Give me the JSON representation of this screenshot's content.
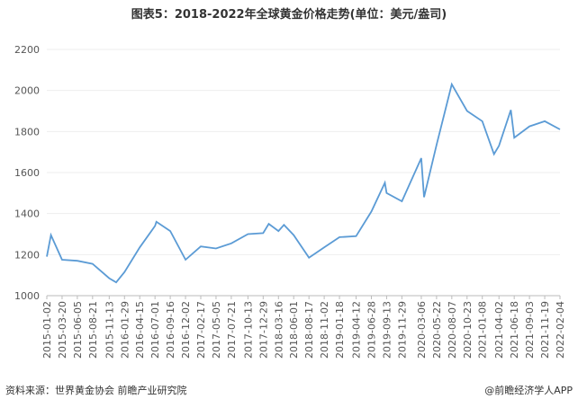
{
  "chart_data": {
    "type": "line",
    "title": "图表5：2018-2022年全球黄金价格走势(单位：美元/盎司)",
    "source": "资料来源：世界黄金协会 前瞻产业研究院",
    "credit": "@前瞻经济学人APP",
    "x": [
      "2015-01-02",
      "2015-01-23",
      "2015-03-20",
      "2015-06-05",
      "2015-08-21",
      "2015-11-13",
      "2015-12-18",
      "2016-01-29",
      "2016-04-15",
      "2016-07-01",
      "2016-07-08",
      "2016-09-16",
      "2016-12-02",
      "2017-02-17",
      "2017-05-05",
      "2017-07-21",
      "2017-10-13",
      "2017-12-29",
      "2018-01-26",
      "2018-03-16",
      "2018-04-13",
      "2018-06-01",
      "2018-08-17",
      "2018-11-02",
      "2019-01-18",
      "2019-04-12",
      "2019-06-28",
      "2019-09-04",
      "2019-09-13",
      "2019-11-29",
      "2020-03-06",
      "2020-03-20",
      "2020-05-22",
      "2020-08-07",
      "2020-10-23",
      "2021-01-08",
      "2021-03-08",
      "2021-04-02",
      "2021-06-01",
      "2021-06-18",
      "2021-09-03",
      "2021-11-19",
      "2022-02-04"
    ],
    "series": [
      {
        "name": "黄金价格",
        "color": "#5b9bd5",
        "values": [
          1190,
          1295,
          1175,
          1170,
          1155,
          1085,
          1065,
          1115,
          1235,
          1340,
          1360,
          1315,
          1175,
          1240,
          1230,
          1255,
          1300,
          1305,
          1350,
          1315,
          1345,
          1295,
          1185,
          1235,
          1285,
          1290,
          1410,
          1550,
          1500,
          1460,
          1670,
          1480,
          1735,
          2030,
          1900,
          1850,
          1690,
          1730,
          1905,
          1770,
          1825,
          1850,
          1810
        ]
      }
    ],
    "xlim": [
      "2015-01-02",
      "2022-02-04"
    ],
    "xticks": [
      "2015-01-02",
      "2015-03-20",
      "2015-06-05",
      "2015-08-21",
      "2015-11-13",
      "2016-01-29",
      "2016-04-15",
      "2016-07-01",
      "2016-09-16",
      "2016-12-02",
      "2017-02-17",
      "2017-05-05",
      "2017-07-21",
      "2017-10-13",
      "2017-12-29",
      "2018-03-16",
      "2018-06-01",
      "2018-08-17",
      "2018-11-02",
      "2019-01-18",
      "2019-04-12",
      "2019-06-28",
      "2019-09-13",
      "2019-11-29",
      "2020-03-06",
      "2020-05-22",
      "2020-08-07",
      "2020-10-23",
      "2021-01-08",
      "2021-04-02",
      "2021-06-18",
      "2021-09-03",
      "2021-11-19",
      "2022-02-04"
    ],
    "ylim": [
      1000,
      2200
    ],
    "yticks": [
      1000,
      1200,
      1400,
      1600,
      1800,
      2000,
      2200
    ],
    "grid": true
  }
}
